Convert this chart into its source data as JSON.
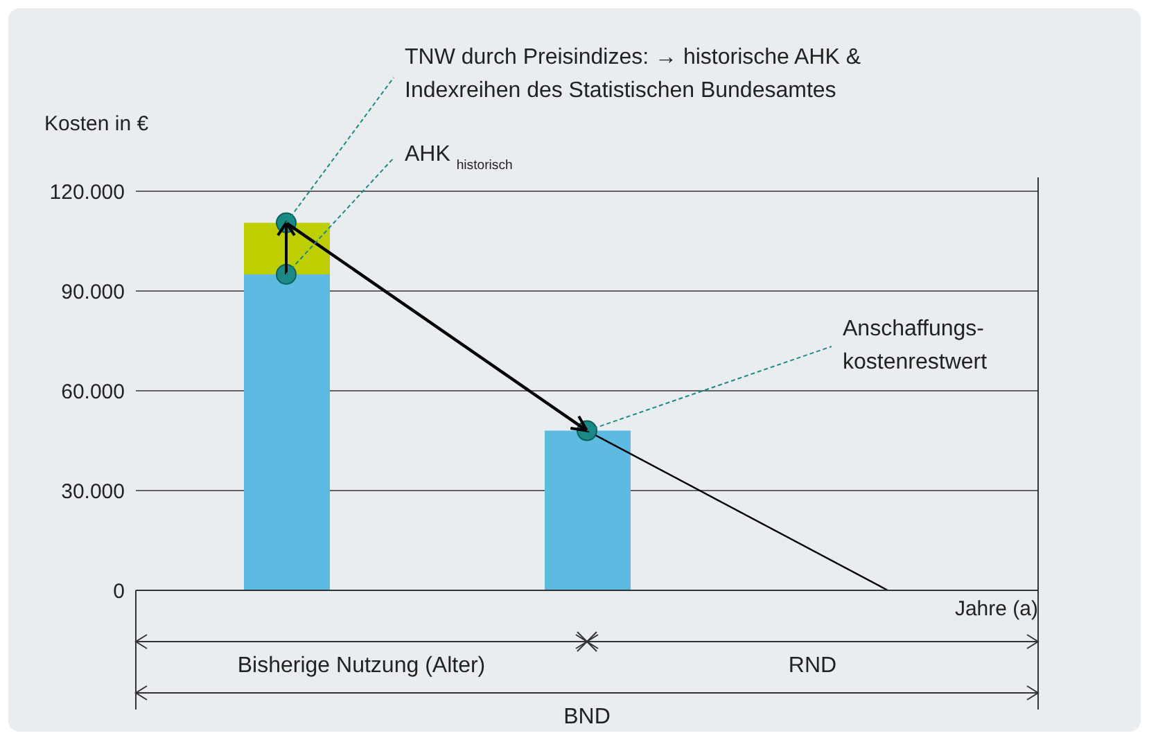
{
  "chart_data": {
    "type": "bar",
    "stacked": true,
    "ylabel": "Kosten in €",
    "xlabel": "Jahre (a)",
    "categories": [
      null,
      null,
      null
    ],
    "series": [
      {
        "color": "#5dbae1",
        "values": [
          95000,
          48000,
          null
        ]
      },
      {
        "color": "#bdcf00",
        "values": [
          15500,
          null,
          null
        ]
      },
      {
        "type": "line",
        "color": "#000000",
        "values": [
          null,
          48000,
          0
        ]
      },
      {
        "type": "scatter",
        "color": "#1b8a86",
        "values": [
          110500,
          48000,
          null
        ]
      },
      {
        "type": "scatter",
        "color": "#1b8a86",
        "values": [
          95000,
          null,
          null
        ]
      }
    ],
    "ylim": [
      0,
      120000
    ],
    "yticks": [
      {
        "value": 0,
        "label": "0"
      },
      {
        "value": 30000,
        "label": "30.000"
      },
      {
        "value": 60000,
        "label": "60.000"
      },
      {
        "value": 90000,
        "label": "90.000"
      },
      {
        "value": 120000,
        "label": "120.000"
      }
    ],
    "grid": "y",
    "annotations": [
      "TNW durch Preisindizes: → historische AHK &\nIndexreihen des Statistischen Bundesamtes",
      "AHK $_{historisch}$",
      "Anschaffungs-\nkostenrestwert",
      "Bisherige Nutzung (Alter)",
      "RND",
      "BND"
    ]
  }
}
